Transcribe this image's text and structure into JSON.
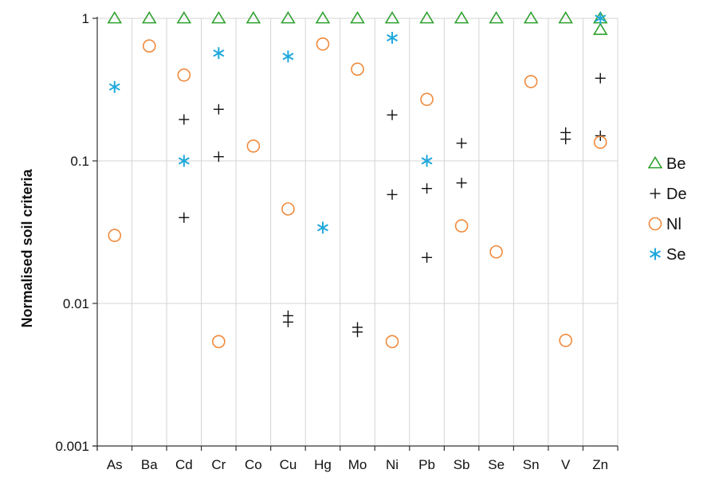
{
  "chart_data": {
    "type": "scatter",
    "ylabel": "Normalised soil criteria",
    "xlabel": "",
    "yscale": "log",
    "ylim": [
      0.001,
      1
    ],
    "y_ticks": [
      {
        "value": 0.001,
        "label": "0.001"
      },
      {
        "value": 0.01,
        "label": "0.01"
      },
      {
        "value": 0.1,
        "label": "0.1"
      },
      {
        "value": 1,
        "label": "1"
      }
    ],
    "grid": true,
    "legend_position": "right",
    "categories": [
      "As",
      "Ba",
      "Cd",
      "Cr",
      "Co",
      "Cu",
      "Hg",
      "Mo",
      "Ni",
      "Pb",
      "Sb",
      "Se",
      "Sn",
      "V",
      "Zn"
    ],
    "series": [
      {
        "name": "Be",
        "marker": "triangle",
        "color": "#2ca02c",
        "points": [
          [
            "As",
            1
          ],
          [
            "Ba",
            1
          ],
          [
            "Cd",
            1
          ],
          [
            "Cr",
            1
          ],
          [
            "Co",
            1
          ],
          [
            "Cu",
            1
          ],
          [
            "Hg",
            1
          ],
          [
            "Mo",
            1
          ],
          [
            "Ni",
            1
          ],
          [
            "Pb",
            1
          ],
          [
            "Sb",
            1
          ],
          [
            "Se",
            1
          ],
          [
            "Sn",
            1
          ],
          [
            "V",
            1
          ],
          [
            "Zn",
            1
          ],
          [
            "Zn",
            0.83
          ]
        ]
      },
      {
        "name": "De",
        "marker": "plus",
        "color": "#111111",
        "points": [
          [
            "Cd",
            0.195
          ],
          [
            "Cd",
            0.04
          ],
          [
            "Cr",
            0.23
          ],
          [
            "Cr",
            0.107
          ],
          [
            "Cu",
            0.0082
          ],
          [
            "Cu",
            0.0074
          ],
          [
            "Mo",
            0.0068
          ],
          [
            "Mo",
            0.0063
          ],
          [
            "Ni",
            0.21
          ],
          [
            "Ni",
            0.058
          ],
          [
            "Pb",
            0.064
          ],
          [
            "Pb",
            0.021
          ],
          [
            "Sb",
            0.133
          ],
          [
            "Sb",
            0.07
          ],
          [
            "V",
            0.158
          ],
          [
            "V",
            0.142
          ],
          [
            "Zn",
            0.38
          ],
          [
            "Zn",
            0.15
          ]
        ]
      },
      {
        "name": "Nl",
        "marker": "circle",
        "color": "#f08a3c",
        "points": [
          [
            "As",
            0.03
          ],
          [
            "Ba",
            0.64
          ],
          [
            "Cd",
            0.4
          ],
          [
            "Cr",
            0.0054
          ],
          [
            "Co",
            0.127
          ],
          [
            "Cu",
            0.046
          ],
          [
            "Hg",
            0.66
          ],
          [
            "Mo",
            0.44
          ],
          [
            "Ni",
            0.0054
          ],
          [
            "Pb",
            0.27
          ],
          [
            "Sb",
            0.035
          ],
          [
            "Se",
            0.023
          ],
          [
            "Sn",
            0.36
          ],
          [
            "V",
            0.0055
          ],
          [
            "Zn",
            0.135
          ]
        ]
      },
      {
        "name": "Se",
        "marker": "asterisk",
        "color": "#1fa8dc",
        "points": [
          [
            "As",
            0.33
          ],
          [
            "Cd",
            0.1
          ],
          [
            "Cr",
            0.57
          ],
          [
            "Cu",
            0.54
          ],
          [
            "Hg",
            0.034
          ],
          [
            "Ni",
            0.73
          ],
          [
            "Pb",
            0.1
          ],
          [
            "Zn",
            1
          ]
        ]
      }
    ]
  }
}
